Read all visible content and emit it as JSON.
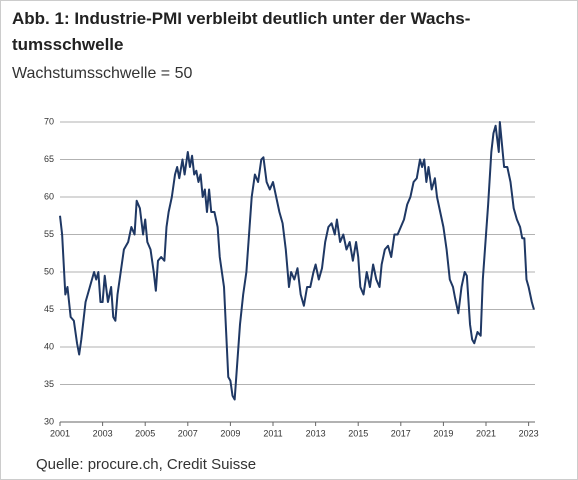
{
  "chart_data": {
    "type": "line",
    "title_lines": [
      "Abb. 1: Industrie-PMI verbleibt deutlich unter der Wachs-",
      "tumsschwelle"
    ],
    "subtitle": "Wachstumsschwelle = 50",
    "source": "Quelle: procure.ch, Credit Suisse",
    "color": "#1f3864",
    "grid": true,
    "xlim": [
      2001,
      2023.3
    ],
    "xticks": [
      2001,
      2003,
      2005,
      2007,
      2009,
      2011,
      2013,
      2015,
      2017,
      2019,
      2021,
      2023
    ],
    "ylim": [
      30,
      70
    ],
    "yticks": [
      30,
      35,
      40,
      45,
      50,
      55,
      60,
      65,
      70
    ],
    "x": [
      2001.0,
      2001.1,
      2001.25,
      2001.35,
      2001.5,
      2001.65,
      2001.8,
      2001.9,
      2002.0,
      2002.2,
      2002.4,
      2002.6,
      2002.7,
      2002.8,
      2002.9,
      2003.0,
      2003.1,
      2003.25,
      2003.4,
      2003.5,
      2003.6,
      2003.7,
      2003.85,
      2004.0,
      2004.2,
      2004.35,
      2004.5,
      2004.6,
      2004.75,
      2004.9,
      2005.0,
      2005.1,
      2005.25,
      2005.4,
      2005.5,
      2005.6,
      2005.75,
      2005.9,
      2006.0,
      2006.1,
      2006.25,
      2006.4,
      2006.5,
      2006.6,
      2006.75,
      2006.85,
      2007.0,
      2007.1,
      2007.2,
      2007.3,
      2007.4,
      2007.5,
      2007.6,
      2007.7,
      2007.8,
      2007.9,
      2008.0,
      2008.1,
      2008.25,
      2008.4,
      2008.5,
      2008.6,
      2008.7,
      2008.8,
      2008.9,
      2009.0,
      2009.1,
      2009.2,
      2009.3,
      2009.45,
      2009.6,
      2009.75,
      2009.9,
      2010.0,
      2010.15,
      2010.3,
      2010.45,
      2010.55,
      2010.7,
      2010.85,
      2011.0,
      2011.15,
      2011.3,
      2011.45,
      2011.6,
      2011.75,
      2011.85,
      2012.0,
      2012.15,
      2012.3,
      2012.45,
      2012.6,
      2012.75,
      2012.9,
      2013.0,
      2013.15,
      2013.3,
      2013.45,
      2013.6,
      2013.75,
      2013.9,
      2014.0,
      2014.15,
      2014.3,
      2014.45,
      2014.6,
      2014.75,
      2014.9,
      2015.0,
      2015.1,
      2015.25,
      2015.4,
      2015.55,
      2015.7,
      2015.85,
      2016.0,
      2016.1,
      2016.25,
      2016.4,
      2016.55,
      2016.7,
      2016.85,
      2017.0,
      2017.15,
      2017.3,
      2017.45,
      2017.6,
      2017.75,
      2017.9,
      2018.0,
      2018.1,
      2018.2,
      2018.3,
      2018.45,
      2018.6,
      2018.7,
      2018.85,
      2019.0,
      2019.15,
      2019.3,
      2019.45,
      2019.55,
      2019.7,
      2019.85,
      2020.0,
      2020.1,
      2020.25,
      2020.35,
      2020.45,
      2020.6,
      2020.75,
      2020.85,
      2021.0,
      2021.1,
      2021.25,
      2021.35,
      2021.45,
      2021.6,
      2021.65,
      2021.75,
      2021.85,
      2022.0,
      2022.15,
      2022.3,
      2022.45,
      2022.6,
      2022.7,
      2022.8,
      2022.9,
      2023.0,
      2023.15,
      2023.25
    ],
    "values": [
      57.5,
      55,
      47,
      48,
      44,
      43.5,
      40.5,
      39,
      41,
      46,
      48,
      50,
      49,
      50,
      46,
      46,
      49.5,
      46,
      48,
      44,
      43.5,
      47,
      50,
      53,
      54,
      56,
      55,
      59.5,
      58.5,
      55,
      57,
      54,
      53,
      50,
      47.5,
      51.5,
      52,
      51.5,
      56,
      58,
      60,
      63,
      64,
      62.5,
      65,
      63,
      66,
      64,
      65.5,
      63,
      63.5,
      62,
      63,
      60,
      61,
      58,
      61,
      58,
      58,
      56,
      52,
      50,
      48,
      42,
      36,
      35.5,
      33.5,
      33,
      37,
      43,
      47,
      50,
      56,
      60,
      63,
      62,
      65,
      65.3,
      62,
      61,
      62,
      60,
      58,
      56.5,
      53,
      48,
      50,
      49,
      50.5,
      47,
      45.5,
      48,
      48,
      50,
      51,
      49,
      50.5,
      54,
      56,
      56.5,
      55,
      57,
      54,
      55,
      53,
      54,
      51.5,
      54,
      52,
      48,
      47,
      50,
      48,
      51,
      49,
      48,
      51,
      53,
      53.5,
      52,
      55,
      55,
      56,
      57,
      59,
      60,
      62,
      62.5,
      65,
      64,
      65,
      62,
      64,
      61,
      62.5,
      60,
      58,
      56,
      53,
      49,
      48,
      46.5,
      44.5,
      48,
      50,
      49.5,
      43,
      41,
      40.5,
      42,
      41.5,
      49,
      55,
      59,
      66,
      68.5,
      69.5,
      66,
      70,
      67,
      64,
      64,
      62,
      58.5,
      57,
      56,
      54.5,
      54.5,
      49,
      48,
      46,
      45
    ]
  }
}
